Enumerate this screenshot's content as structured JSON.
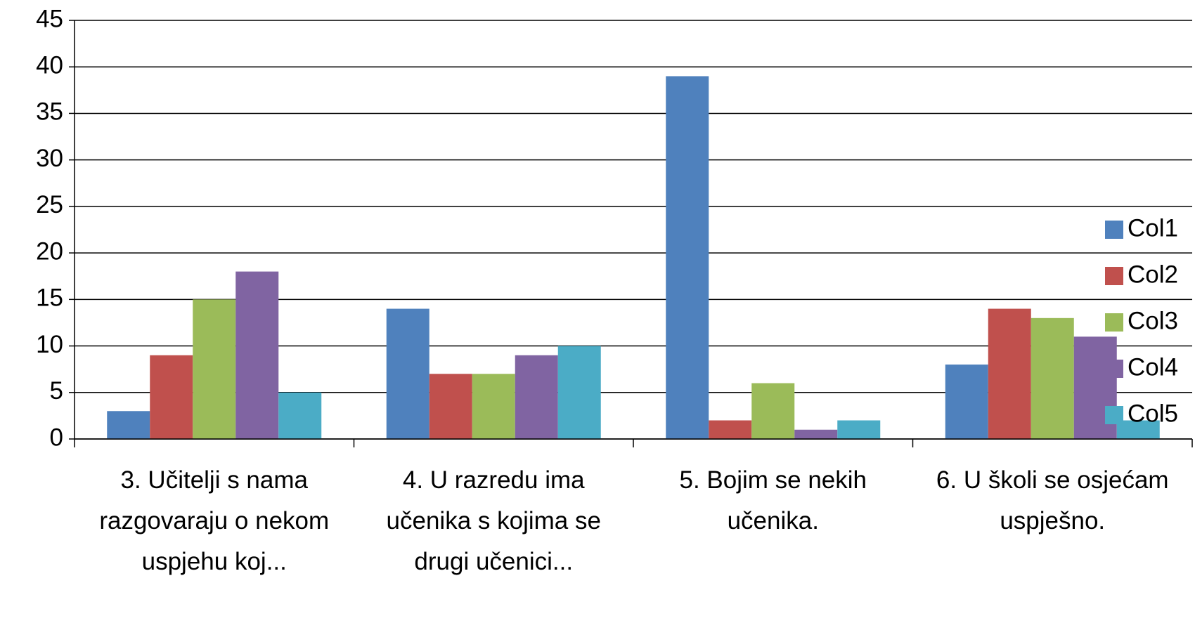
{
  "chart_data": {
    "type": "bar",
    "categories": [
      "3. Učitelji s nama razgovaraju o nekom uspjehu koj...",
      "4. U razredu ima učenika s kojima se drugi učenici...",
      "5. Bojim se nekih učenika.",
      "6. U školi se osjećam uspješno."
    ],
    "series": [
      {
        "name": "Col1",
        "color": "#4f81bd",
        "values": [
          3,
          14,
          39,
          8
        ]
      },
      {
        "name": "Col2",
        "color": "#c0504d",
        "values": [
          9,
          7,
          2,
          14
        ]
      },
      {
        "name": "Col3",
        "color": "#9bbb59",
        "values": [
          15,
          7,
          6,
          13
        ]
      },
      {
        "name": "Col4",
        "color": "#8064a2",
        "values": [
          18,
          9,
          1,
          11
        ]
      },
      {
        "name": "Col5",
        "color": "#4bacc6",
        "values": [
          5,
          10,
          2,
          2
        ]
      }
    ],
    "ylim": [
      0,
      45
    ],
    "yticks": [
      0,
      5,
      10,
      15,
      20,
      25,
      30,
      35,
      40,
      45
    ],
    "grid": true,
    "legend": "right"
  }
}
